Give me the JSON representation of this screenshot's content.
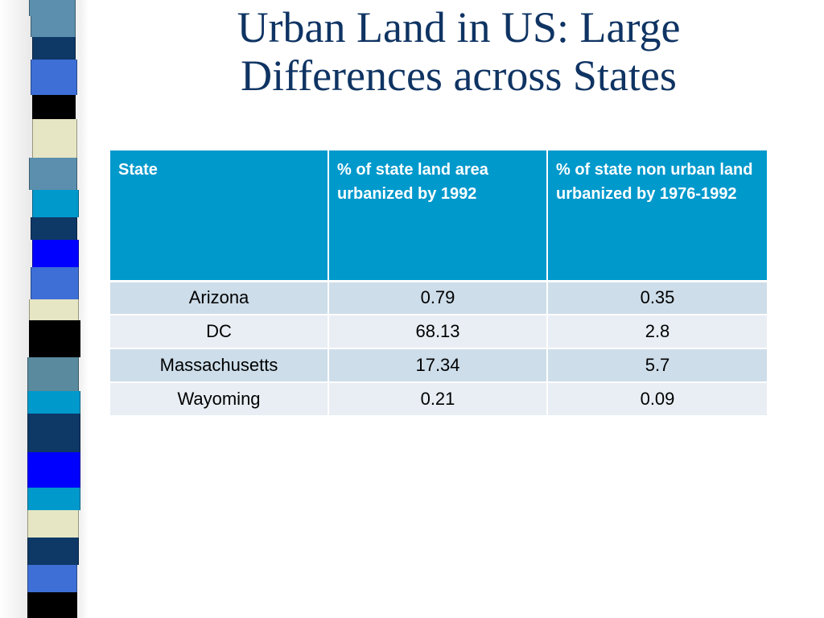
{
  "slide": {
    "title": "Urban Land in US: Large Differences across States"
  },
  "table": {
    "headers": [
      "State",
      "% of state land area urbanized by  1992",
      "% of state non urban  land urbanized by  1976-1992"
    ],
    "rows": [
      [
        "Arizona",
        "0.79",
        "0.35"
      ],
      [
        "DC",
        "68.13",
        "2.8"
      ],
      [
        "Massachusetts",
        "17.34",
        "5.7"
      ],
      [
        "Wayoming",
        "0.21",
        "0.09"
      ]
    ]
  },
  "colors": {
    "title": "#0f3463",
    "header_bg": "#0099cc",
    "row_odd": "#cddde9",
    "row_even": "#e8eef4",
    "strip_palette": [
      "#5b8fad",
      "#0e3866",
      "#3d6fd6",
      "#000000",
      "#e6e6c4",
      "#0099cc",
      "#0000ff",
      "#5a8a9e"
    ]
  }
}
